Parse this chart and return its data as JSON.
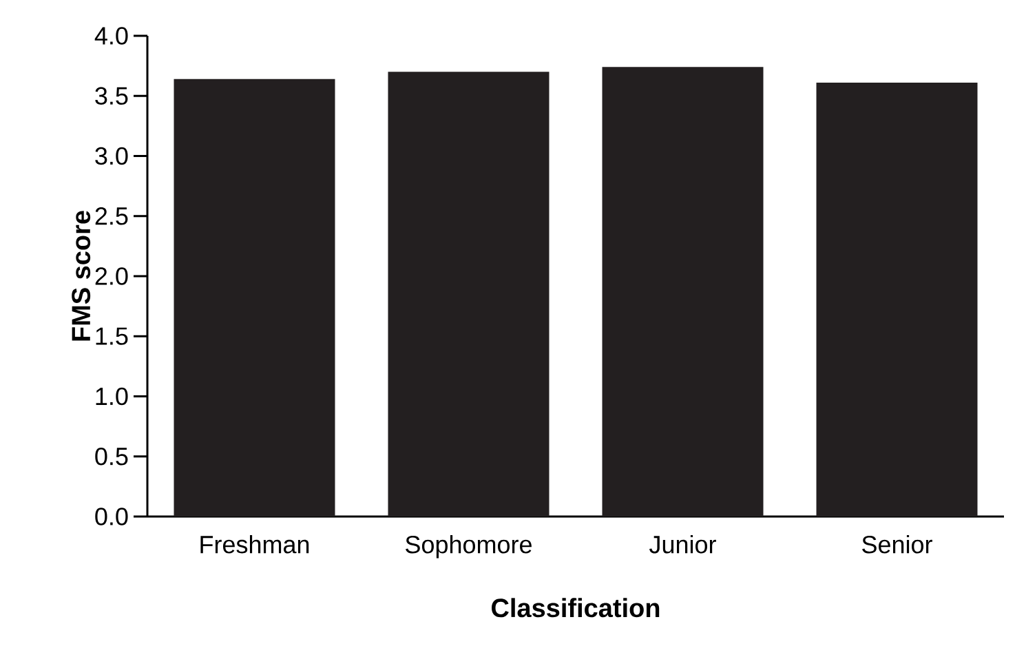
{
  "chart_data": {
    "type": "bar",
    "xlabel": "Classification",
    "ylabel": "FMS score",
    "categories": [
      "Freshman",
      "Sophomore",
      "Junior",
      "Senior"
    ],
    "values": [
      3.64,
      3.7,
      3.74,
      3.61
    ],
    "color": "#231f20",
    "ylim": [
      0,
      4
    ],
    "yticks": [
      {
        "value": 0,
        "label": "0.0"
      },
      {
        "value": 0.5,
        "label": "0.5"
      },
      {
        "value": 1,
        "label": "1.0"
      },
      {
        "value": 1.5,
        "label": "1.5"
      },
      {
        "value": 2,
        "label": "2.0"
      },
      {
        "value": 2.5,
        "label": "2.5"
      },
      {
        "value": 3,
        "label": "3.0"
      },
      {
        "value": 3.5,
        "label": "3.5"
      },
      {
        "value": 4,
        "label": "4.0"
      }
    ],
    "grid": false
  }
}
